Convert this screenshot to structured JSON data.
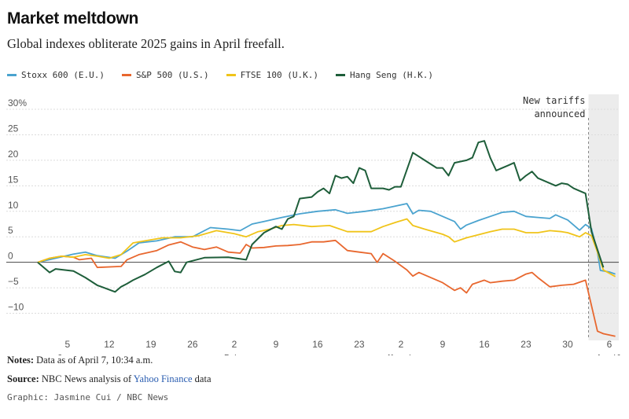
{
  "header": {
    "title": "Market meltdown",
    "subtitle": "Global indexes obliterate 2025 gains in April freefall."
  },
  "footer": {
    "notes_label": "Notes:",
    "notes_text": " Data as of April 7, 10:34 a.m.",
    "source_label": "Source:",
    "source_text_1": " NBC News analysis of ",
    "source_link": "Yahoo Finance",
    "source_text_2": " data",
    "credit": "Graphic: Jasmine Cui / NBC News"
  },
  "colors": {
    "stoxx": "#4aa3cf",
    "sp500": "#e8672e",
    "ftse": "#f0c419",
    "hangseng": "#1e5e3a",
    "shade": "#ececec"
  },
  "chart_data": {
    "type": "line",
    "title": "Market meltdown",
    "subtitle": "Global indexes obliterate 2025 gains in April freefall.",
    "ylabel": "",
    "xlabel": "",
    "ylim": [
      -15,
      30
    ],
    "y_ticks": [
      -10,
      -5,
      0,
      5,
      10,
      15,
      20,
      25,
      30
    ],
    "y_tick_labels": [
      "−10",
      "−5",
      "0",
      "5",
      "10",
      "15",
      "20",
      "25",
      "30%"
    ],
    "xlim": [
      0,
      96
    ],
    "x_ticks": [
      {
        "x": 5,
        "label": "5"
      },
      {
        "x": 12,
        "label": "12"
      },
      {
        "x": 19,
        "label": "19"
      },
      {
        "x": 26,
        "label": "26"
      },
      {
        "x": 33,
        "label": "2"
      },
      {
        "x": 40,
        "label": "9"
      },
      {
        "x": 47,
        "label": "16"
      },
      {
        "x": 54,
        "label": "23"
      },
      {
        "x": 61,
        "label": "2"
      },
      {
        "x": 68,
        "label": "9"
      },
      {
        "x": 75,
        "label": "16"
      },
      {
        "x": 82,
        "label": "23"
      },
      {
        "x": 89,
        "label": "30"
      },
      {
        "x": 96,
        "label": "6"
      }
    ],
    "month_labels": [
      {
        "x": 5,
        "label": "Jan."
      },
      {
        "x": 33,
        "label": "Feb."
      },
      {
        "x": 61,
        "label": "March"
      },
      {
        "x": 96,
        "label": "April"
      }
    ],
    "annotation": {
      "x": 92.5,
      "text_lines": [
        "New tariffs",
        "announced"
      ],
      "shade_from": 92.5,
      "shade_to": 99
    },
    "legend_position": "top-left",
    "grid": true,
    "series": [
      {
        "name": "Stoxx 600 (E.U.)",
        "color_key": "stoxx",
        "points": [
          [
            0,
            0
          ],
          [
            3,
            0.8
          ],
          [
            6,
            1.6
          ],
          [
            8,
            2.0
          ],
          [
            10,
            1.3
          ],
          [
            13,
            0.8
          ],
          [
            15,
            2.2
          ],
          [
            17,
            3.8
          ],
          [
            20,
            4.2
          ],
          [
            23,
            5.0
          ],
          [
            26,
            5.0
          ],
          [
            29,
            6.8
          ],
          [
            32,
            6.5
          ],
          [
            34,
            6.2
          ],
          [
            36,
            7.5
          ],
          [
            38,
            8.0
          ],
          [
            41,
            8.8
          ],
          [
            44,
            9.5
          ],
          [
            47,
            10.0
          ],
          [
            50,
            10.3
          ],
          [
            52,
            9.6
          ],
          [
            55,
            10.0
          ],
          [
            58,
            10.5
          ],
          [
            60,
            11.0
          ],
          [
            62,
            11.5
          ],
          [
            63,
            9.5
          ],
          [
            64,
            10.2
          ],
          [
            66,
            10.0
          ],
          [
            68,
            9.0
          ],
          [
            70,
            8.0
          ],
          [
            71,
            6.5
          ],
          [
            72,
            7.3
          ],
          [
            74,
            8.2
          ],
          [
            76,
            9.0
          ],
          [
            78,
            9.8
          ],
          [
            80,
            10.0
          ],
          [
            82,
            9.0
          ],
          [
            84,
            8.8
          ],
          [
            86,
            8.6
          ],
          [
            87,
            9.3
          ],
          [
            89,
            8.3
          ],
          [
            90,
            7.3
          ],
          [
            91,
            6.3
          ],
          [
            92,
            7.4
          ],
          [
            93,
            6.6
          ],
          [
            94,
            2.0
          ],
          [
            94.5,
            -1.6
          ],
          [
            96,
            -1.9
          ],
          [
            97,
            -2.3
          ]
        ]
      },
      {
        "name": "S&P 500 (U.S.)",
        "color_key": "sp500",
        "points": [
          [
            0,
            0
          ],
          [
            2,
            0.8
          ],
          [
            4,
            1.2
          ],
          [
            6,
            1.0
          ],
          [
            7,
            0.5
          ],
          [
            9,
            0.8
          ],
          [
            10,
            -1.0
          ],
          [
            14,
            -0.8
          ],
          [
            15,
            0.5
          ],
          [
            17,
            1.5
          ],
          [
            20,
            2.3
          ],
          [
            22,
            3.4
          ],
          [
            24,
            4.0
          ],
          [
            26,
            3.0
          ],
          [
            28,
            2.5
          ],
          [
            30,
            3.0
          ],
          [
            32,
            2.0
          ],
          [
            34,
            1.8
          ],
          [
            35,
            3.5
          ],
          [
            36,
            2.8
          ],
          [
            38,
            2.9
          ],
          [
            40,
            3.2
          ],
          [
            42,
            3.3
          ],
          [
            44,
            3.5
          ],
          [
            46,
            4.0
          ],
          [
            48,
            4.0
          ],
          [
            50,
            4.3
          ],
          [
            52,
            2.3
          ],
          [
            54,
            2.0
          ],
          [
            56,
            1.7
          ],
          [
            57,
            0.0
          ],
          [
            58,
            1.7
          ],
          [
            60,
            0.2
          ],
          [
            62,
            -1.5
          ],
          [
            63,
            -2.7
          ],
          [
            64,
            -2.0
          ],
          [
            66,
            -3.0
          ],
          [
            68,
            -4.0
          ],
          [
            70,
            -5.5
          ],
          [
            71,
            -5.0
          ],
          [
            72,
            -6.0
          ],
          [
            73,
            -4.3
          ],
          [
            75,
            -3.5
          ],
          [
            76,
            -4.0
          ],
          [
            78,
            -3.7
          ],
          [
            80,
            -3.5
          ],
          [
            82,
            -2.3
          ],
          [
            83,
            -2.0
          ],
          [
            84,
            -3.0
          ],
          [
            86,
            -4.8
          ],
          [
            88,
            -4.5
          ],
          [
            90,
            -4.3
          ],
          [
            92,
            -3.5
          ],
          [
            94,
            -13.5
          ],
          [
            95,
            -14.0
          ],
          [
            97,
            -14.5
          ]
        ]
      },
      {
        "name": "FTSE 100 (U.K.)",
        "color_key": "ftse",
        "points": [
          [
            0,
            0
          ],
          [
            2,
            0.8
          ],
          [
            4,
            1.2
          ],
          [
            6,
            1.0
          ],
          [
            8,
            1.5
          ],
          [
            10,
            1.2
          ],
          [
            12,
            0.8
          ],
          [
            14,
            1.5
          ],
          [
            16,
            3.8
          ],
          [
            18,
            4.2
          ],
          [
            21,
            4.8
          ],
          [
            24,
            4.8
          ],
          [
            27,
            5.2
          ],
          [
            30,
            6.2
          ],
          [
            33,
            5.6
          ],
          [
            35,
            5.0
          ],
          [
            37,
            6.0
          ],
          [
            39,
            6.5
          ],
          [
            41,
            7.2
          ],
          [
            43,
            7.4
          ],
          [
            46,
            7.0
          ],
          [
            49,
            7.2
          ],
          [
            52,
            6.0
          ],
          [
            56,
            6.0
          ],
          [
            58,
            7.0
          ],
          [
            60,
            7.8
          ],
          [
            62,
            8.5
          ],
          [
            63,
            7.2
          ],
          [
            65,
            6.5
          ],
          [
            68,
            5.5
          ],
          [
            69,
            5.0
          ],
          [
            70,
            4.0
          ],
          [
            72,
            4.8
          ],
          [
            74,
            5.4
          ],
          [
            76,
            6.0
          ],
          [
            78,
            6.5
          ],
          [
            80,
            6.5
          ],
          [
            82,
            5.8
          ],
          [
            84,
            5.8
          ],
          [
            86,
            6.2
          ],
          [
            88,
            6.0
          ],
          [
            89,
            5.8
          ],
          [
            90,
            5.4
          ],
          [
            91,
            5.0
          ],
          [
            92,
            5.8
          ],
          [
            93,
            5.2
          ],
          [
            94,
            2.0
          ],
          [
            95,
            -1.5
          ],
          [
            97,
            -2.8
          ]
        ]
      },
      {
        "name": "Hang Seng (H.K.)",
        "color_key": "hangseng",
        "points": [
          [
            0,
            0
          ],
          [
            2,
            -2.0
          ],
          [
            3,
            -1.3
          ],
          [
            6,
            -1.7
          ],
          [
            8,
            -3.0
          ],
          [
            10,
            -4.5
          ],
          [
            13,
            -5.8
          ],
          [
            14,
            -4.8
          ],
          [
            15,
            -4.2
          ],
          [
            16,
            -3.5
          ],
          [
            18,
            -2.4
          ],
          [
            20,
            -1.0
          ],
          [
            22,
            0.2
          ],
          [
            23,
            -1.8
          ],
          [
            24,
            -2.0
          ],
          [
            25,
            0.0
          ],
          [
            28,
            0.9
          ],
          [
            32,
            1.0
          ],
          [
            35,
            0.5
          ],
          [
            36,
            3.5
          ],
          [
            38,
            5.8
          ],
          [
            40,
            7.0
          ],
          [
            41,
            6.5
          ],
          [
            42,
            8.5
          ],
          [
            43,
            9.0
          ],
          [
            44,
            12.5
          ],
          [
            46,
            12.8
          ],
          [
            47,
            13.8
          ],
          [
            48,
            14.5
          ],
          [
            49,
            13.5
          ],
          [
            50,
            17.0
          ],
          [
            51,
            16.5
          ],
          [
            52,
            16.8
          ],
          [
            53,
            15.5
          ],
          [
            54,
            18.5
          ],
          [
            55,
            18.0
          ],
          [
            56,
            14.5
          ],
          [
            58,
            14.5
          ],
          [
            59,
            14.2
          ],
          [
            60,
            14.8
          ],
          [
            61,
            14.8
          ],
          [
            63,
            21.5
          ],
          [
            65,
            20.0
          ],
          [
            67,
            18.5
          ],
          [
            68,
            18.5
          ],
          [
            69,
            17.0
          ],
          [
            70,
            19.5
          ],
          [
            72,
            20.0
          ],
          [
            73,
            20.5
          ],
          [
            74,
            23.5
          ],
          [
            75,
            23.8
          ],
          [
            76,
            20.5
          ],
          [
            77,
            18.0
          ],
          [
            79,
            19.0
          ],
          [
            80,
            19.5
          ],
          [
            81,
            16.0
          ],
          [
            82,
            17.0
          ],
          [
            83,
            17.8
          ],
          [
            84,
            16.5
          ],
          [
            85,
            16.0
          ],
          [
            87,
            15.0
          ],
          [
            88,
            15.5
          ],
          [
            89,
            15.3
          ],
          [
            90,
            14.5
          ],
          [
            91,
            14.0
          ],
          [
            92,
            13.5
          ],
          [
            93,
            6.0
          ],
          [
            95,
            -1.0
          ]
        ]
      }
    ]
  }
}
